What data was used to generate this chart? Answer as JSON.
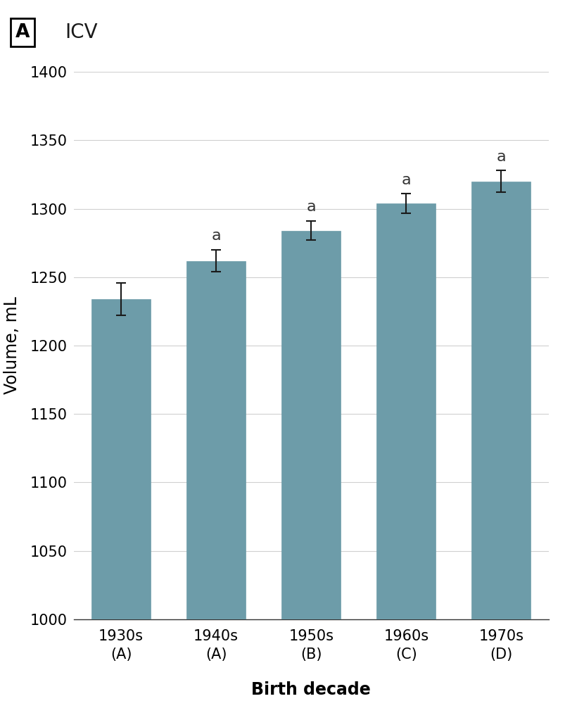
{
  "categories": [
    "1930s\n(A)",
    "1940s\n(A)",
    "1950s\n(B)",
    "1960s\n(C)",
    "1970s\n(D)"
  ],
  "values": [
    1234,
    1262,
    1284,
    1304,
    1320
  ],
  "errors": [
    12,
    8,
    7,
    7,
    8
  ],
  "significance_labels": [
    "",
    "a",
    "a",
    "a",
    "a"
  ],
  "bar_color": "#6d9ca9",
  "bar_edge_color": "#6d9ca9",
  "error_color": "#1a1a1a",
  "title": "ICV",
  "panel_label": "A",
  "ylabel": "Volume, mL",
  "xlabel": "Birth decade",
  "ylim": [
    1000,
    1400
  ],
  "yticks": [
    1000,
    1050,
    1100,
    1150,
    1200,
    1250,
    1300,
    1350,
    1400
  ],
  "grid_color": "#d0d0d0",
  "background_color": "#ffffff",
  "title_fontsize": 20,
  "label_fontsize": 17,
  "tick_fontsize": 15,
  "sig_fontsize": 16,
  "bar_width": 0.62
}
